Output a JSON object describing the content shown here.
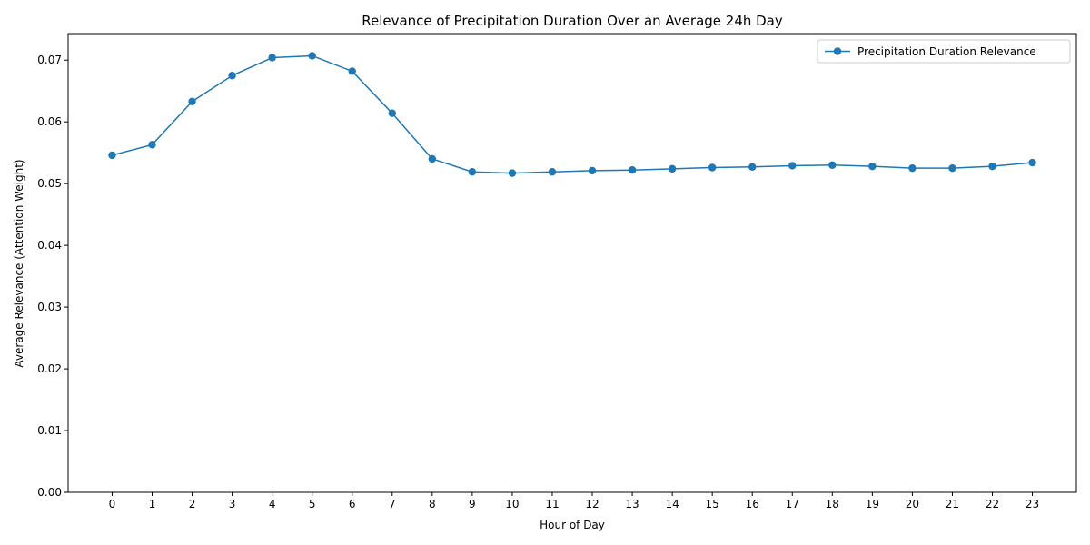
{
  "chart_data": {
    "type": "line",
    "title": "Relevance of Precipitation Duration Over an Average 24h Day",
    "xlabel": "Hour of Day",
    "ylabel": "Average Relevance (Attention Weight)",
    "x": [
      0,
      1,
      2,
      3,
      4,
      5,
      6,
      7,
      8,
      9,
      10,
      11,
      12,
      13,
      14,
      15,
      16,
      17,
      18,
      19,
      20,
      21,
      22,
      23
    ],
    "xlim": [
      -1.1,
      24.1
    ],
    "ylim": [
      0,
      0.0743
    ],
    "yticks": [
      "0.00",
      "0.01",
      "0.02",
      "0.03",
      "0.04",
      "0.05",
      "0.06",
      "0.07"
    ],
    "ytick_values": [
      0,
      0.01,
      0.02,
      0.03,
      0.04,
      0.05,
      0.06,
      0.07
    ],
    "grid": false,
    "legend": "upper-right",
    "series": [
      {
        "name": "Precipitation Duration Relevance",
        "color": "#1f77b4",
        "marker": "circle",
        "values": [
          0.0546,
          0.0563,
          0.0633,
          0.0675,
          0.0704,
          0.0707,
          0.0682,
          0.0614,
          0.054,
          0.0519,
          0.0517,
          0.0519,
          0.0521,
          0.0522,
          0.0524,
          0.0526,
          0.0527,
          0.0529,
          0.053,
          0.0528,
          0.0525,
          0.0525,
          0.0528,
          0.0534
        ]
      }
    ]
  }
}
